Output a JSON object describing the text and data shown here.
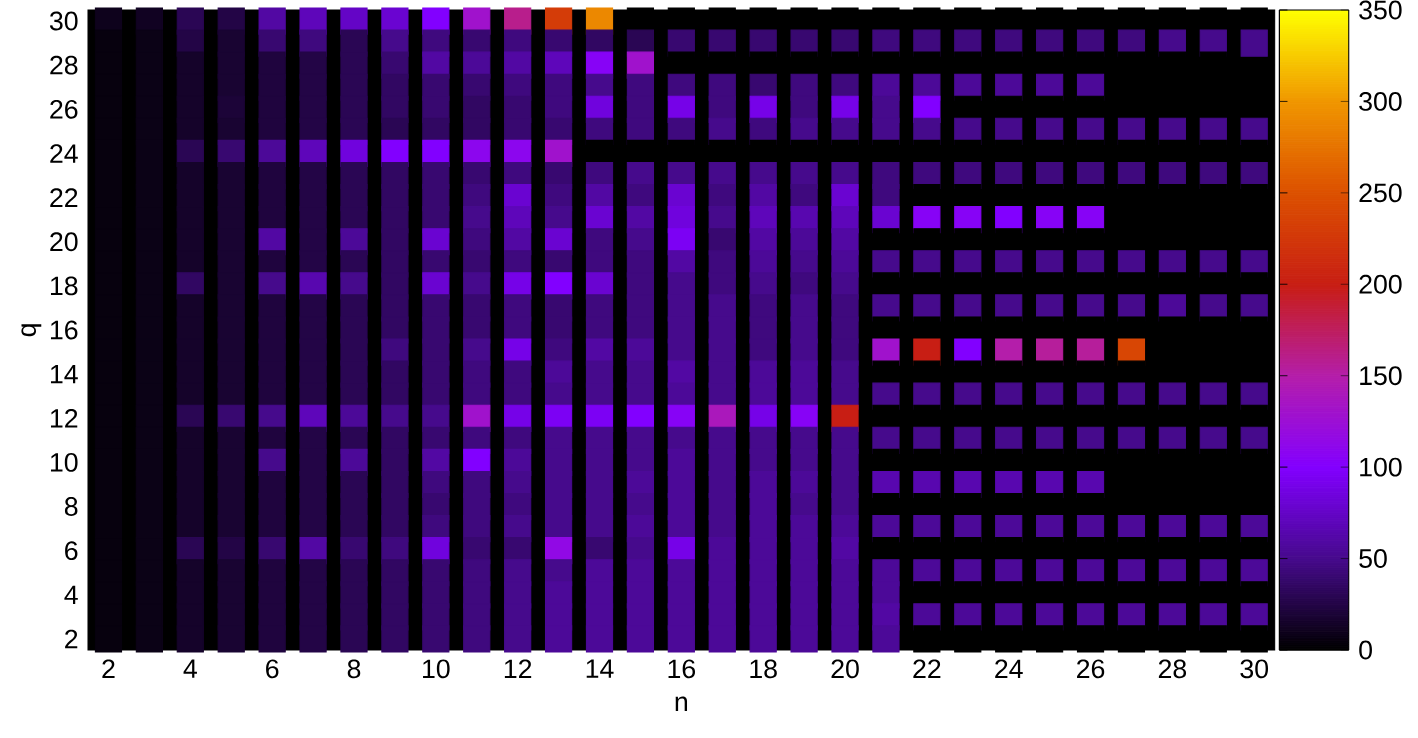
{
  "chart_data": {
    "type": "heatmap",
    "xlabel": "n",
    "ylabel": "q",
    "categories": [
      "2",
      null,
      "4",
      null,
      "6",
      null,
      "8",
      null,
      "10",
      null,
      "12",
      null,
      "14",
      null,
      "16",
      null,
      "18",
      null,
      "20",
      null,
      "22",
      null,
      "24",
      null,
      "26",
      null,
      "28",
      null,
      "30"
    ],
    "y_categories": [
      "30",
      null,
      "28",
      null,
      "26",
      null,
      "24",
      null,
      "22",
      null,
      "20",
      null,
      "18",
      null,
      "16",
      null,
      "14",
      null,
      "12",
      null,
      "10",
      null,
      "8",
      null,
      "6",
      null,
      "4",
      null,
      "2"
    ],
    "cells": [
      [
        10,
        12,
        30,
        25,
        60,
        70,
        75,
        80,
        100,
        130,
        160,
        230,
        290,
        0,
        0,
        0,
        0,
        0,
        0,
        0,
        0,
        0,
        0,
        0,
        0,
        0,
        0,
        0,
        0
      ],
      [
        5,
        8,
        25,
        18,
        40,
        45,
        30,
        50,
        45,
        40,
        45,
        40,
        35,
        30,
        40,
        40,
        40,
        40,
        40,
        45,
        45,
        45,
        45,
        45,
        45,
        45,
        50,
        50,
        50
      ],
      [
        5,
        8,
        15,
        18,
        22,
        25,
        30,
        40,
        60,
        55,
        60,
        70,
        105,
        130,
        0,
        0,
        0,
        0,
        0,
        0,
        0,
        0,
        0,
        0,
        0,
        0,
        0,
        0,
        null
      ],
      [
        5,
        8,
        15,
        18,
        22,
        25,
        30,
        35,
        40,
        40,
        45,
        45,
        50,
        45,
        45,
        45,
        40,
        45,
        45,
        55,
        55,
        55,
        55,
        55,
        55,
        0,
        0,
        0,
        0
      ],
      [
        5,
        8,
        15,
        20,
        22,
        25,
        30,
        35,
        40,
        35,
        40,
        45,
        85,
        45,
        90,
        45,
        90,
        45,
        90,
        50,
        100,
        0,
        0,
        0,
        0,
        0,
        0,
        0,
        0
      ],
      [
        5,
        8,
        15,
        18,
        22,
        25,
        30,
        30,
        35,
        35,
        40,
        40,
        45,
        45,
        45,
        50,
        45,
        50,
        50,
        50,
        50,
        50,
        50,
        50,
        50,
        50,
        50,
        50,
        50
      ],
      [
        5,
        8,
        30,
        40,
        55,
        70,
        85,
        100,
        100,
        110,
        110,
        130,
        0,
        0,
        0,
        0,
        0,
        0,
        0,
        0,
        0,
        0,
        0,
        0,
        0,
        0,
        0,
        0,
        0
      ],
      [
        5,
        8,
        15,
        18,
        22,
        25,
        30,
        35,
        40,
        40,
        45,
        40,
        45,
        50,
        50,
        50,
        50,
        50,
        50,
        45,
        45,
        45,
        45,
        45,
        45,
        45,
        45,
        45,
        45
      ],
      [
        5,
        8,
        15,
        18,
        22,
        25,
        30,
        35,
        40,
        45,
        80,
        45,
        60,
        45,
        80,
        45,
        60,
        45,
        80,
        45,
        0,
        0,
        0,
        0,
        0,
        0,
        0,
        0,
        0
      ],
      [
        5,
        8,
        15,
        18,
        22,
        25,
        30,
        35,
        40,
        50,
        70,
        50,
        80,
        60,
        85,
        50,
        70,
        65,
        70,
        80,
        105,
        105,
        100,
        105,
        105,
        0,
        0,
        0,
        0
      ],
      [
        5,
        8,
        15,
        18,
        60,
        25,
        55,
        35,
        80,
        45,
        60,
        80,
        45,
        50,
        95,
        40,
        60,
        55,
        60,
        0,
        0,
        0,
        0,
        0,
        0,
        0,
        0,
        0,
        0
      ],
      [
        5,
        8,
        15,
        18,
        22,
        25,
        30,
        35,
        40,
        40,
        45,
        40,
        45,
        45,
        60,
        45,
        55,
        50,
        55,
        50,
        50,
        50,
        50,
        50,
        50,
        50,
        50,
        50,
        50
      ],
      [
        5,
        8,
        35,
        18,
        50,
        65,
        50,
        35,
        80,
        50,
        90,
        100,
        80,
        45,
        50,
        45,
        50,
        45,
        50,
        0,
        0,
        0,
        0,
        0,
        0,
        0,
        0,
        0,
        0
      ],
      [
        5,
        8,
        15,
        18,
        22,
        25,
        30,
        35,
        40,
        40,
        45,
        40,
        45,
        45,
        50,
        50,
        45,
        50,
        45,
        50,
        50,
        50,
        50,
        50,
        50,
        50,
        55,
        50,
        50
      ],
      [
        5,
        8,
        15,
        18,
        22,
        25,
        30,
        35,
        40,
        40,
        45,
        40,
        45,
        45,
        50,
        50,
        45,
        50,
        45,
        0,
        0,
        0,
        0,
        0,
        0,
        0,
        0,
        0,
        0
      ],
      [
        5,
        8,
        15,
        18,
        22,
        25,
        30,
        45,
        40,
        50,
        90,
        45,
        60,
        55,
        50,
        50,
        45,
        50,
        45,
        130,
        200,
        100,
        150,
        155,
        155,
        240,
        0,
        0,
        0
      ],
      [
        5,
        8,
        15,
        18,
        22,
        25,
        30,
        35,
        40,
        45,
        45,
        55,
        50,
        50,
        60,
        50,
        55,
        55,
        50,
        0,
        0,
        0,
        0,
        0,
        0,
        0,
        0,
        0,
        0
      ],
      [
        5,
        8,
        15,
        18,
        22,
        25,
        30,
        35,
        40,
        45,
        45,
        50,
        50,
        50,
        55,
        50,
        55,
        55,
        50,
        50,
        50,
        50,
        50,
        50,
        50,
        50,
        50,
        50,
        50
      ],
      [
        5,
        8,
        30,
        40,
        50,
        70,
        55,
        50,
        50,
        130,
        90,
        95,
        95,
        100,
        105,
        140,
        90,
        105,
        200,
        0,
        0,
        0,
        0,
        0,
        0,
        0,
        0,
        0,
        0
      ],
      [
        5,
        8,
        15,
        18,
        22,
        25,
        30,
        35,
        40,
        45,
        45,
        50,
        50,
        50,
        50,
        50,
        50,
        50,
        50,
        50,
        50,
        50,
        50,
        50,
        50,
        50,
        50,
        50,
        50
      ],
      [
        5,
        8,
        15,
        18,
        50,
        25,
        55,
        35,
        60,
        100,
        55,
        50,
        50,
        50,
        55,
        50,
        50,
        50,
        50,
        0,
        0,
        0,
        0,
        0,
        0,
        0,
        0,
        0,
        0
      ],
      [
        5,
        8,
        15,
        18,
        22,
        25,
        30,
        35,
        45,
        45,
        50,
        50,
        50,
        55,
        55,
        50,
        55,
        55,
        50,
        65,
        65,
        65,
        65,
        65,
        65,
        0,
        0,
        0,
        0
      ],
      [
        5,
        8,
        15,
        18,
        22,
        25,
        30,
        35,
        40,
        45,
        45,
        50,
        50,
        50,
        55,
        50,
        55,
        50,
        50,
        0,
        0,
        0,
        0,
        0,
        0,
        0,
        0,
        0,
        0
      ],
      [
        5,
        8,
        15,
        18,
        22,
        25,
        30,
        35,
        45,
        45,
        50,
        50,
        50,
        55,
        55,
        50,
        55,
        55,
        55,
        55,
        55,
        55,
        55,
        55,
        55,
        55,
        55,
        55,
        55
      ],
      [
        5,
        8,
        30,
        25,
        40,
        60,
        40,
        45,
        85,
        40,
        40,
        115,
        40,
        50,
        90,
        55,
        55,
        55,
        60,
        0,
        0,
        0,
        0,
        0,
        0,
        0,
        0,
        0,
        0
      ],
      [
        5,
        8,
        15,
        18,
        22,
        25,
        30,
        35,
        40,
        45,
        50,
        50,
        55,
        55,
        55,
        55,
        55,
        55,
        55,
        55,
        55,
        55,
        55,
        55,
        55,
        55,
        55,
        55,
        55
      ],
      [
        5,
        8,
        15,
        18,
        22,
        25,
        30,
        35,
        40,
        45,
        50,
        55,
        55,
        55,
        55,
        55,
        55,
        55,
        55,
        55,
        0,
        0,
        0,
        0,
        0,
        0,
        0,
        0,
        0
      ],
      [
        5,
        8,
        15,
        18,
        22,
        25,
        30,
        35,
        40,
        45,
        50,
        55,
        55,
        55,
        55,
        55,
        55,
        55,
        55,
        60,
        55,
        55,
        55,
        55,
        55,
        55,
        55,
        55,
        55
      ],
      [
        5,
        8,
        15,
        18,
        22,
        25,
        30,
        35,
        40,
        45,
        50,
        55,
        55,
        55,
        55,
        55,
        55,
        55,
        55,
        55,
        0,
        0,
        0,
        0,
        0,
        0,
        0,
        0,
        0
      ]
    ],
    "clim": [
      0,
      350
    ],
    "cticks": [
      0,
      50,
      100,
      150,
      200,
      250,
      300,
      350
    ]
  }
}
